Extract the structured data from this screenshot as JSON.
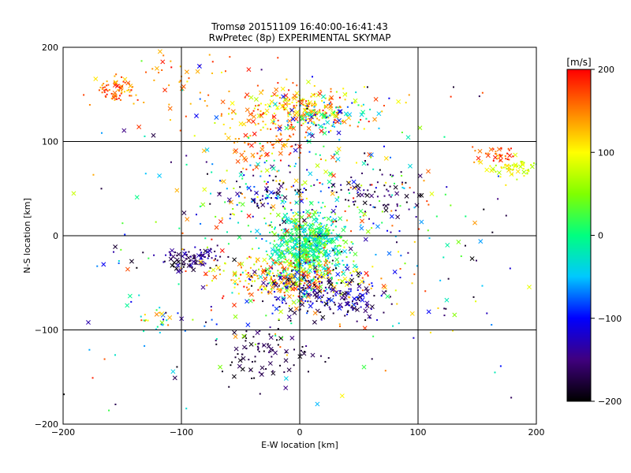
{
  "chart_data": {
    "type": "scatter",
    "title": "Tromsø 20151109 16:40:00-16:41:43",
    "subtitle": "RwPretec (8p) EXPERIMENTAL SKYMAP",
    "xlabel": "E-W location [km]",
    "ylabel": "N-S location [km]",
    "xlim": [
      -200,
      200
    ],
    "ylim": [
      -200,
      200
    ],
    "xticks": [
      "−200",
      "−100",
      "0",
      "100",
      "200"
    ],
    "yticks": [
      "200",
      "100",
      "0",
      "−100",
      "−200"
    ],
    "grid": true,
    "markers": [
      "dot",
      "x"
    ],
    "colorbar": {
      "label": "[m/s]",
      "range": [
        -200,
        200
      ],
      "ticks": [
        "200",
        "100",
        "0",
        "−100",
        "−200"
      ],
      "colormap": [
        "#000000",
        "#40007f",
        "#0000ff",
        "#00c8ff",
        "#00ff80",
        "#80ff00",
        "#ffff00",
        "#ff8000",
        "#ff0000"
      ]
    },
    "clusters": [
      {
        "x": 5,
        "y": -12,
        "sx": 16,
        "sy": 18,
        "n": 650,
        "vmin": -60,
        "vmax": 60
      },
      {
        "x": -10,
        "y": -45,
        "sx": 30,
        "sy": 12,
        "n": 260,
        "vmin": 60,
        "vmax": 200
      },
      {
        "x": 10,
        "y": -55,
        "sx": 28,
        "sy": 12,
        "n": 160,
        "vmin": -200,
        "vmax": -80
      },
      {
        "x": -90,
        "y": -25,
        "sx": 14,
        "sy": 6,
        "n": 90,
        "vmin": -200,
        "vmax": -120
      },
      {
        "x": -35,
        "y": -125,
        "sx": 22,
        "sy": 15,
        "n": 90,
        "vmin": -200,
        "vmax": -150
      },
      {
        "x": 0,
        "y": 135,
        "sx": 28,
        "sy": 12,
        "n": 260,
        "vmin": 70,
        "vmax": 200
      },
      {
        "x": 15,
        "y": 125,
        "sx": 22,
        "sy": 10,
        "n": 80,
        "vmin": -120,
        "vmax": 20
      },
      {
        "x": -155,
        "y": 155,
        "sx": 10,
        "sy": 6,
        "n": 70,
        "vmin": 110,
        "vmax": 200
      },
      {
        "x": 180,
        "y": 72,
        "sx": 12,
        "sy": 5,
        "n": 60,
        "vmin": 60,
        "vmax": 120
      },
      {
        "x": 165,
        "y": 85,
        "sx": 9,
        "sy": 4,
        "n": 35,
        "vmin": 140,
        "vmax": 200
      },
      {
        "x": 0,
        "y": 50,
        "sx": 45,
        "sy": 25,
        "n": 160,
        "vmin": -200,
        "vmax": 200
      },
      {
        "x": 70,
        "y": 45,
        "sx": 18,
        "sy": 10,
        "n": 50,
        "vmin": -200,
        "vmax": -140
      },
      {
        "x": -25,
        "y": 45,
        "sx": 15,
        "sy": 10,
        "n": 50,
        "vmin": -200,
        "vmax": -100
      },
      {
        "x": 40,
        "y": -70,
        "sx": 16,
        "sy": 9,
        "n": 70,
        "vmin": -200,
        "vmax": -100
      },
      {
        "x": -30,
        "y": 95,
        "sx": 20,
        "sy": 12,
        "n": 70,
        "vmin": 120,
        "vmax": 200
      },
      {
        "x": -110,
        "y": 160,
        "sx": 25,
        "sy": 25,
        "n": 50,
        "vmin": 120,
        "vmax": 200
      },
      {
        "x": -120,
        "y": -90,
        "sx": 10,
        "sy": 10,
        "n": 25,
        "vmin": -120,
        "vmax": 180
      },
      {
        "x": 0,
        "y": 0,
        "sx": 95,
        "sy": 85,
        "n": 420,
        "vmin": -200,
        "vmax": 200
      }
    ]
  }
}
